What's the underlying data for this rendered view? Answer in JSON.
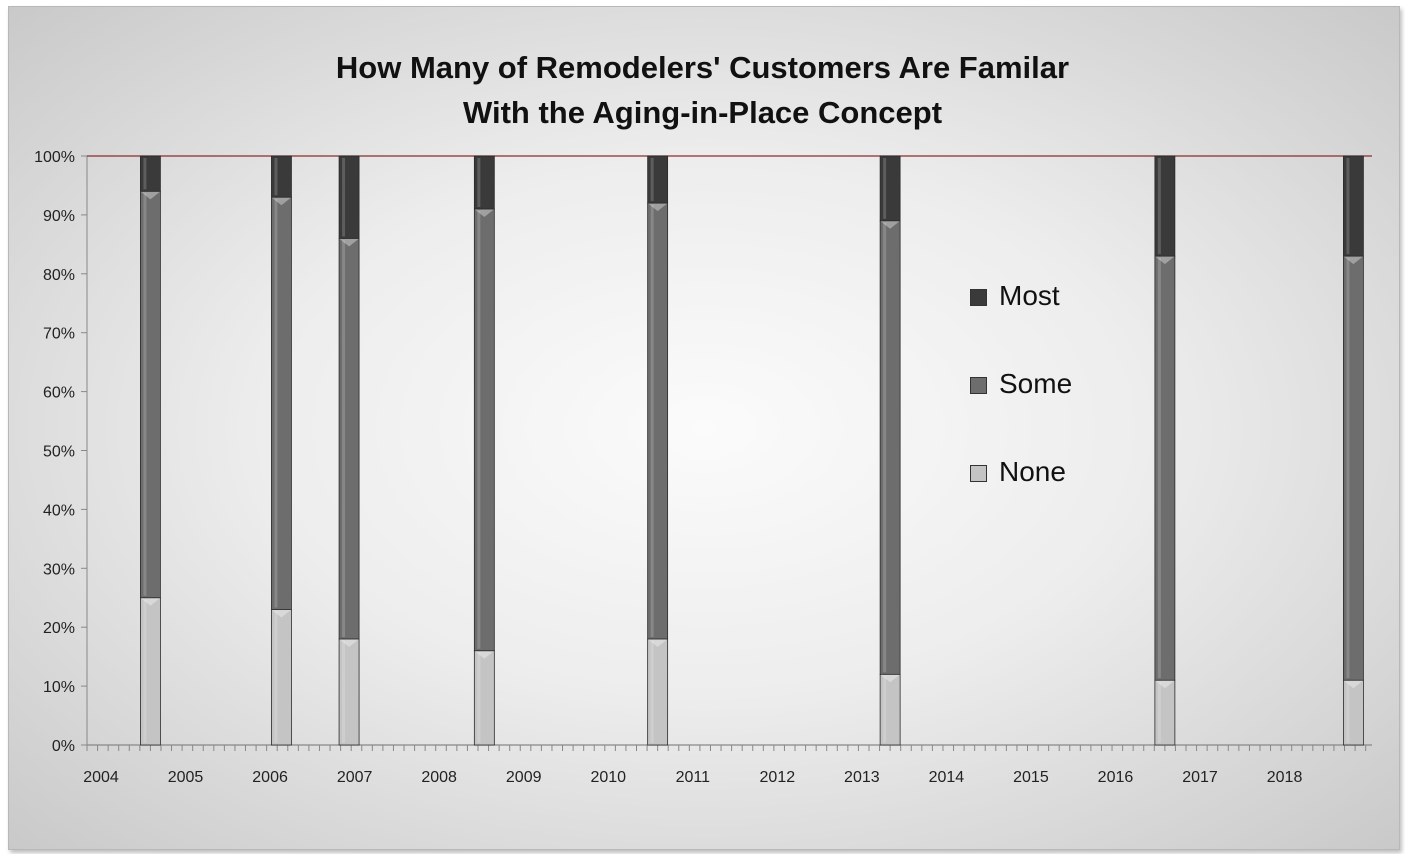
{
  "chart_data": {
    "type": "bar",
    "stacked": true,
    "title_lines": [
      "How Many of Remodelers' Customers Are Familar",
      "With the Aging-in-Place Concept"
    ],
    "x_tick_labels": [
      "2004",
      "2005",
      "2006",
      "2007",
      "2008",
      "2009",
      "2010",
      "2011",
      "2012",
      "2013",
      "2014",
      "2015",
      "2016",
      "2017",
      "2018"
    ],
    "y_tick_labels": [
      "0%",
      "10%",
      "20%",
      "30%",
      "40%",
      "50%",
      "60%",
      "70%",
      "80%",
      "90%",
      "100%"
    ],
    "ylim": [
      0,
      100
    ],
    "x": [
      2004.75,
      2006.3,
      2007.1,
      2008.7,
      2010.75,
      2013.5,
      2016.75,
      2018.98
    ],
    "series": [
      {
        "name": "None",
        "color": "#c4c4c4",
        "values": [
          25,
          23,
          18,
          16,
          18,
          12,
          11,
          11
        ]
      },
      {
        "name": "Some",
        "color": "#6d6d6d",
        "values": [
          69,
          70,
          68,
          75,
          74,
          77,
          72,
          72
        ]
      },
      {
        "name": "Most",
        "color": "#3a3a3a",
        "values": [
          6,
          7,
          14,
          9,
          8,
          11,
          17,
          17
        ]
      }
    ],
    "legend": {
      "placement": "center-right",
      "order": [
        "Most",
        "Some",
        "None"
      ]
    },
    "grid": false,
    "top_line_color": "#8b2c2c"
  }
}
